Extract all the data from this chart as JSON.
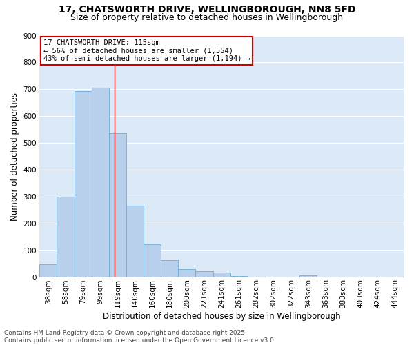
{
  "title_line1": "17, CHATSWORTH DRIVE, WELLINGBOROUGH, NN8 5FD",
  "title_line2": "Size of property relative to detached houses in Wellingborough",
  "xlabel": "Distribution of detached houses by size in Wellingborough",
  "ylabel": "Number of detached properties",
  "categories": [
    "38sqm",
    "58sqm",
    "79sqm",
    "99sqm",
    "119sqm",
    "140sqm",
    "160sqm",
    "180sqm",
    "200sqm",
    "221sqm",
    "241sqm",
    "261sqm",
    "282sqm",
    "302sqm",
    "322sqm",
    "343sqm",
    "363sqm",
    "383sqm",
    "403sqm",
    "424sqm",
    "444sqm"
  ],
  "values": [
    48,
    300,
    693,
    707,
    537,
    265,
    122,
    62,
    29,
    22,
    18,
    5,
    2,
    0,
    0,
    7,
    0,
    0,
    0,
    0,
    2
  ],
  "bar_color": "#b8d0eb",
  "bar_edge_color": "#6aaed6",
  "figure_bg": "#ffffff",
  "axes_bg": "#dce9f7",
  "grid_color": "#ffffff",
  "annotation_text": "17 CHATSWORTH DRIVE: 115sqm\n← 56% of detached houses are smaller (1,554)\n43% of semi-detached houses are larger (1,194) →",
  "annotation_box_facecolor": "#ffffff",
  "annotation_box_edgecolor": "#cc0000",
  "vline_color": "#cc0000",
  "vline_x_index": 3.82,
  "ylim": [
    0,
    900
  ],
  "yticks": [
    0,
    100,
    200,
    300,
    400,
    500,
    600,
    700,
    800,
    900
  ],
  "footer_line1": "Contains HM Land Registry data © Crown copyright and database right 2025.",
  "footer_line2": "Contains public sector information licensed under the Open Government Licence v3.0.",
  "title_fontsize": 10,
  "subtitle_fontsize": 9,
  "axis_label_fontsize": 8.5,
  "tick_fontsize": 7.5,
  "annotation_fontsize": 7.5,
  "footer_fontsize": 6.5
}
